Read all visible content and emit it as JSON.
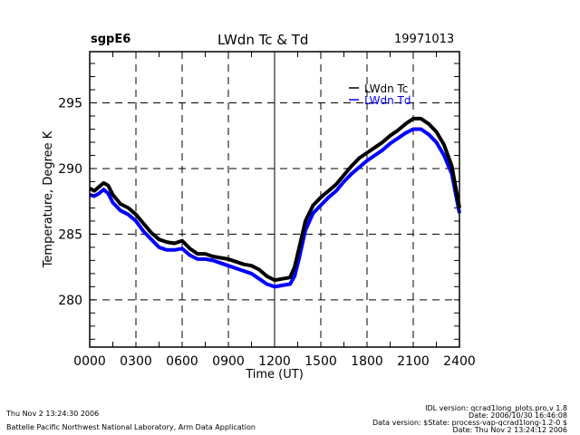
{
  "header": {
    "station": "sgpE6",
    "title": "LWdn Tc & Td",
    "date": "19971013"
  },
  "footer": {
    "left": [
      "Thu Nov  2 13:24:30 2006",
      "Battelle Pacific Northwest National Laboratory, Arm Data Application"
    ],
    "right": [
      "IDL version: qcrad1long_plots.pro,v 1.8",
      "Date: 2006/10/30 16:46:08",
      "Data version: $State: process-vap-qcrad1long-1.2-0 $",
      "Date: Thu Nov  2 13:24:12 2006"
    ]
  },
  "chart_data": {
    "type": "line",
    "title": "LWdn Tc & Td",
    "xlabel": "Time (UT)",
    "ylabel": "Temperature, Degree K",
    "xlim": [
      0,
      24
    ],
    "ylim": [
      276.4,
      298.9
    ],
    "x_ticks": [
      0,
      3,
      6,
      9,
      12,
      15,
      18,
      21,
      24
    ],
    "x_tick_labels": [
      "0000",
      "0300",
      "0600",
      "0900",
      "1200",
      "1500",
      "1800",
      "2100",
      "2400"
    ],
    "y_ticks": [
      280,
      285,
      290,
      295
    ],
    "y_tick_labels": [
      "280",
      "285",
      "290",
      "295"
    ],
    "grid": true,
    "legend": {
      "placement": "top-right"
    },
    "series": [
      {
        "name": "LWdn Tc",
        "color": "#000000",
        "x": [
          0,
          0.3,
          0.6,
          0.9,
          1.2,
          1.5,
          2.0,
          2.5,
          3.0,
          3.5,
          4.0,
          4.5,
          5.0,
          5.5,
          6.0,
          6.5,
          7.0,
          7.5,
          8.0,
          8.5,
          9.0,
          9.5,
          10.0,
          10.5,
          11.0,
          11.5,
          12.0,
          12.5,
          13.0,
          13.3,
          13.6,
          14.0,
          14.5,
          15.0,
          15.5,
          16.0,
          16.5,
          17.0,
          17.5,
          18.0,
          18.5,
          19.0,
          19.5,
          20.0,
          20.5,
          21.0,
          21.5,
          22.0,
          22.5,
          23.0,
          23.5,
          24.0
        ],
        "y": [
          288.5,
          288.3,
          288.6,
          288.9,
          288.7,
          288.0,
          287.3,
          287.0,
          286.5,
          285.8,
          285.1,
          284.6,
          284.4,
          284.3,
          284.5,
          283.9,
          283.5,
          283.5,
          283.3,
          283.2,
          283.1,
          282.9,
          282.7,
          282.6,
          282.3,
          281.8,
          281.5,
          281.6,
          281.7,
          282.5,
          284.0,
          286.0,
          287.2,
          287.8,
          288.3,
          288.8,
          289.5,
          290.2,
          290.8,
          291.2,
          291.6,
          292.0,
          292.5,
          292.9,
          293.4,
          293.8,
          293.8,
          293.4,
          292.8,
          291.8,
          290.2,
          287.0
        ]
      },
      {
        "name": "LWdn Td",
        "color": "#0000ff",
        "x": [
          0,
          0.3,
          0.6,
          0.9,
          1.2,
          1.5,
          2.0,
          2.5,
          3.0,
          3.5,
          4.0,
          4.5,
          5.0,
          5.5,
          6.0,
          6.5,
          7.0,
          7.5,
          8.0,
          8.5,
          9.0,
          9.5,
          10.0,
          10.5,
          11.0,
          11.5,
          12.0,
          12.5,
          13.0,
          13.3,
          13.6,
          14.0,
          14.5,
          15.0,
          15.5,
          16.0,
          16.5,
          17.0,
          17.5,
          18.0,
          18.5,
          19.0,
          19.5,
          20.0,
          20.5,
          21.0,
          21.5,
          22.0,
          22.5,
          23.0,
          23.5,
          24.0
        ],
        "y": [
          288.0,
          287.9,
          288.1,
          288.4,
          288.1,
          287.4,
          286.8,
          286.5,
          286.0,
          285.2,
          284.6,
          284.0,
          283.8,
          283.8,
          283.9,
          283.4,
          283.1,
          283.1,
          283.0,
          282.8,
          282.6,
          282.4,
          282.2,
          282.0,
          281.6,
          281.2,
          281.0,
          281.1,
          281.2,
          281.8,
          283.2,
          285.3,
          286.6,
          287.2,
          287.8,
          288.3,
          289.0,
          289.6,
          290.1,
          290.6,
          291.0,
          291.4,
          291.9,
          292.3,
          292.7,
          293.0,
          293.0,
          292.6,
          292.0,
          291.0,
          289.6,
          286.6
        ]
      }
    ]
  }
}
